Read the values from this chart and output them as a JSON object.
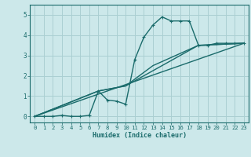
{
  "background_color": "#cce8ea",
  "grid_color": "#aacfd2",
  "line_color": "#1a6b6b",
  "xlabel": "Humidex (Indice chaleur)",
  "xlim": [
    -0.5,
    23.5
  ],
  "ylim": [
    -0.3,
    5.5
  ],
  "xticks": [
    0,
    1,
    2,
    3,
    4,
    5,
    6,
    7,
    8,
    9,
    10,
    11,
    12,
    13,
    14,
    15,
    16,
    17,
    18,
    19,
    20,
    21,
    22,
    23
  ],
  "yticks": [
    0,
    1,
    2,
    3,
    4,
    5
  ],
  "series": [
    {
      "x": [
        0,
        1,
        2,
        3,
        4,
        5,
        6,
        7,
        8,
        9,
        10,
        11,
        12,
        13,
        14,
        15,
        16,
        17,
        18,
        19,
        20,
        21,
        22,
        23
      ],
      "y": [
        0,
        0,
        0,
        0.05,
        0,
        0,
        0.05,
        1.25,
        0.8,
        0.75,
        0.6,
        2.8,
        3.9,
        4.5,
        4.9,
        4.7,
        4.7,
        4.7,
        3.5,
        3.5,
        3.6,
        3.6,
        3.6,
        3.6
      ],
      "marker": "+",
      "ms": 3.5,
      "lw": 1.0
    },
    {
      "x": [
        0,
        7,
        10,
        13,
        18,
        23
      ],
      "y": [
        0,
        1.25,
        1.5,
        2.5,
        3.5,
        3.6
      ],
      "marker": null,
      "ms": 0,
      "lw": 1.0
    },
    {
      "x": [
        0,
        7,
        10,
        18,
        23
      ],
      "y": [
        0,
        1.25,
        1.5,
        3.5,
        3.6
      ],
      "marker": null,
      "ms": 0,
      "lw": 1.0
    },
    {
      "x": [
        0,
        23
      ],
      "y": [
        0,
        3.6
      ],
      "marker": null,
      "ms": 0,
      "lw": 1.0
    }
  ]
}
